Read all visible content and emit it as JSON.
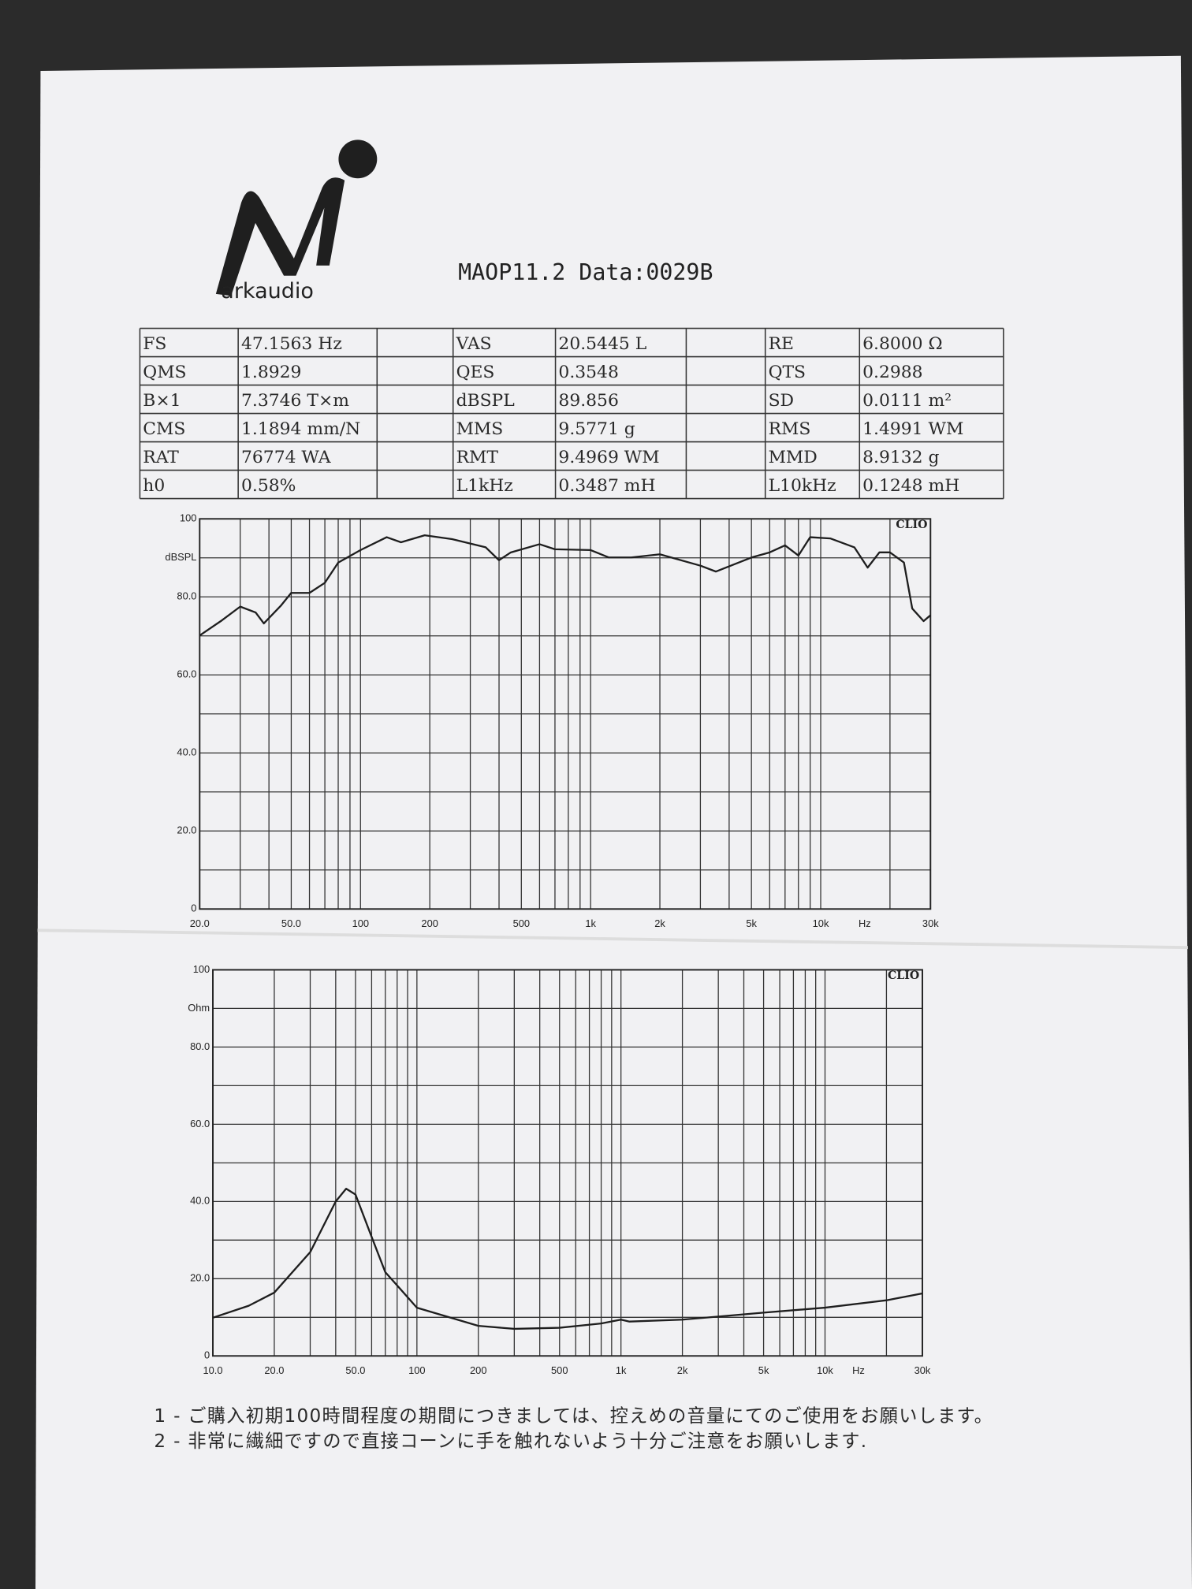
{
  "header": {
    "logo": "arkaudio",
    "title": "MAOP11.2  Data:0029B"
  },
  "table": {
    "rows": [
      [
        "FS",
        "47.1563 Hz",
        "VAS",
        "20.5445 L",
        "RE",
        "6.8000 Ω"
      ],
      [
        "QMS",
        "1.8929",
        "QES",
        "0.3548",
        "QTS",
        "0.2988"
      ],
      [
        "B×1",
        "7.3746 T×m",
        "dBSPL",
        "89.856",
        "SD",
        "0.0111 m²"
      ],
      [
        "CMS",
        "1.1894 mm/N",
        "MMS",
        "9.5771 g",
        "RMS",
        "1.4991 WM"
      ],
      [
        "RAT",
        "76774 WA",
        "RMT",
        "9.4969 WM",
        "MMD",
        "8.9132 g"
      ],
      [
        "h0",
        "0.58%",
        "L1kHz",
        "0.3487 mH",
        "L10kHz",
        "0.1248 mH"
      ]
    ]
  },
  "chart_data": [
    {
      "type": "line",
      "x_scale": "log",
      "color": "#1e1e1e",
      "brand": "CLIO",
      "y_label": "dBSPL",
      "x_label": "Hz",
      "x": [
        20,
        25,
        30,
        35,
        38,
        45,
        50,
        60,
        70,
        80,
        100,
        130,
        150,
        190,
        250,
        350,
        400,
        450,
        600,
        700,
        1000,
        1200,
        1500,
        2000,
        3000,
        3500,
        5000,
        6000,
        7000,
        8000,
        9000,
        11000,
        14000,
        16000,
        18000,
        20000,
        23000,
        25000,
        28000,
        30000
      ],
      "values": [
        70.1,
        74,
        77.5,
        76,
        73.2,
        77.7,
        81,
        81,
        83.6,
        88.8,
        92,
        95.3,
        94,
        95.8,
        94.8,
        92.7,
        89.4,
        91.4,
        93.5,
        92.2,
        92,
        90.1,
        90.1,
        90.9,
        88,
        86.5,
        90.1,
        91.4,
        93.2,
        90.6,
        95.3,
        95,
        92.7,
        87.5,
        91.4,
        91.4,
        88.8,
        77,
        73.8,
        75.3
      ],
      "xlim": [
        20,
        30000
      ],
      "ylim": [
        0,
        100
      ],
      "xticks": [
        {
          "value": 20,
          "label": "20.0"
        },
        {
          "value": 50,
          "label": "50.0"
        },
        100,
        200,
        500,
        {
          "value": 1000,
          "label": "1k"
        },
        {
          "value": 2000,
          "label": "2k"
        },
        {
          "value": 5000,
          "label": "5k"
        },
        {
          "value": 10000,
          "label": "10k"
        },
        {
          "value": 30000,
          "label": "30k"
        }
      ],
      "yticks": [
        0,
        {
          "value": 20,
          "label": "20.0"
        },
        {
          "value": 40,
          "label": "40.0"
        },
        {
          "value": 60,
          "label": "60.0"
        },
        {
          "value": 80,
          "label": "80.0"
        },
        100
      ],
      "xgrid": [
        20,
        30,
        40,
        50,
        60,
        70,
        80,
        90,
        100,
        200,
        300,
        400,
        500,
        600,
        700,
        800,
        900,
        1000,
        2000,
        3000,
        4000,
        5000,
        6000,
        7000,
        8000,
        9000,
        10000,
        20000,
        30000
      ],
      "ygrid": [
        0,
        10,
        20,
        30,
        40,
        50,
        60,
        70,
        80,
        90,
        100
      ]
    },
    {
      "type": "line",
      "x_scale": "log",
      "color": "#1e1e1e",
      "brand": "CLIO",
      "y_label": "Ohm",
      "x_label": "Hz",
      "x": [
        10,
        15,
        20,
        30,
        40,
        45,
        50,
        60,
        70,
        100,
        200,
        300,
        500,
        800,
        1000,
        1100,
        2000,
        5000,
        10000,
        20000,
        30000
      ],
      "values": [
        9.9,
        13,
        16.4,
        26.9,
        40,
        43.3,
        41.8,
        30.8,
        21.7,
        12.5,
        7.8,
        7,
        7.3,
        8.4,
        9.4,
        8.9,
        9.4,
        11.2,
        12.5,
        14.4,
        16.2
      ],
      "xlim": [
        10,
        30000
      ],
      "ylim": [
        0,
        100
      ],
      "xticks": [
        {
          "value": 10,
          "label": "10.0"
        },
        {
          "value": 20,
          "label": "20.0"
        },
        {
          "value": 50,
          "label": "50.0"
        },
        100,
        200,
        500,
        {
          "value": 1000,
          "label": "1k"
        },
        {
          "value": 2000,
          "label": "2k"
        },
        {
          "value": 5000,
          "label": "5k"
        },
        {
          "value": 10000,
          "label": "10k"
        },
        {
          "value": 30000,
          "label": "30k"
        }
      ],
      "yticks": [
        0,
        {
          "value": 20,
          "label": "20.0"
        },
        {
          "value": 40,
          "label": "40.0"
        },
        {
          "value": 60,
          "label": "60.0"
        },
        {
          "value": 80,
          "label": "80.0"
        },
        100
      ],
      "xgrid": [
        10,
        20,
        30,
        40,
        50,
        60,
        70,
        80,
        90,
        100,
        200,
        300,
        400,
        500,
        600,
        700,
        800,
        900,
        1000,
        2000,
        3000,
        4000,
        5000,
        6000,
        7000,
        8000,
        9000,
        10000,
        20000,
        30000
      ],
      "ygrid": [
        0,
        10,
        20,
        30,
        40,
        50,
        60,
        70,
        80,
        90,
        100
      ]
    }
  ],
  "notes": [
    "1 - ご購入初期100時間程度の期間につきましては、控えめの音量にてのご使用をお願いします。",
    "2 - 非常に繊細ですので直接コーンに手を触れないよう十分ご注意をお願いします."
  ]
}
